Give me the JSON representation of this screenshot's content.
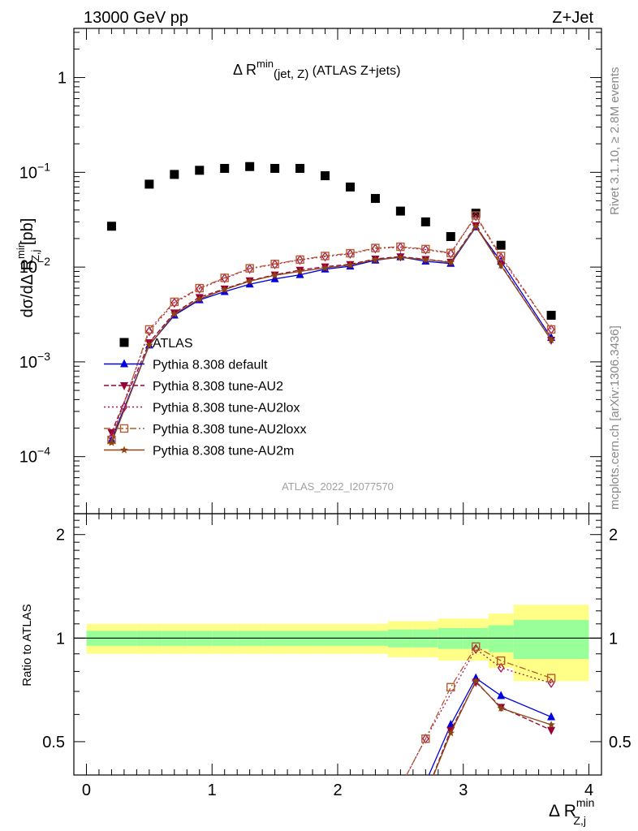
{
  "header": {
    "energy_label": "13000 GeV pp",
    "process_label": "Z+Jet"
  },
  "plot_title": {
    "prefix": "Δ R",
    "sup": "min",
    "sub": "(jet, Z)",
    "suffix": " (ATLAS Z+jets)"
  },
  "side_labels": {
    "rivet": "Rivet 3.1.10, ≥ 2.8M events",
    "mcplots": "mcplots.cern.ch [arXiv:1306.3436]"
  },
  "watermark": "ATLAS_2022_I2077570",
  "axes": {
    "y_main_label": "dσ/dΔ R",
    "y_main_label_sup": "min",
    "y_main_label_sub": "Z,j",
    "y_main_label_unit": " [pb]",
    "y_ratio_label": "Ratio to ATLAS",
    "x_label": "Δ R",
    "x_label_sup": "min",
    "x_label_sub": "Z,j",
    "x_ticks": [
      "0",
      "1",
      "2",
      "3",
      "4"
    ],
    "y_main_ticks": [
      {
        "base": "1",
        "exp": ""
      },
      {
        "base": "10",
        "exp": "−1"
      },
      {
        "base": "10",
        "exp": "−2"
      },
      {
        "base": "10",
        "exp": "−3"
      },
      {
        "base": "10",
        "exp": "−4"
      }
    ],
    "y_ratio_ticks": [
      "2",
      "1",
      "0.5"
    ]
  },
  "colors": {
    "atlas": "#000000",
    "default": "#0000dd",
    "au2": "#990033",
    "au2lox": "#aa1155",
    "au2loxx": "#b35a2e",
    "au2m": "#8b4513",
    "band_inner": "#99ff99",
    "band_outer": "#ffff88"
  },
  "chart_data": {
    "type": "scatter",
    "x_range": [
      -0.1,
      4.1
    ],
    "main_y_log": true,
    "main_y_range": [
      2.5e-05,
      3.3
    ],
    "ratio_y_log": true,
    "ratio_y_range": [
      0.4,
      2.3
    ],
    "x": [
      0.2,
      0.5,
      0.7,
      0.9,
      1.1,
      1.3,
      1.5,
      1.7,
      1.9,
      2.1,
      2.3,
      2.5,
      2.7,
      2.9,
      3.1,
      3.3,
      3.7
    ],
    "series": [
      {
        "name": "ATLAS",
        "key": "atlas",
        "marker": "square",
        "values": [
          0.027,
          0.075,
          0.095,
          0.105,
          0.11,
          0.115,
          0.11,
          0.11,
          0.092,
          0.07,
          0.053,
          0.039,
          0.03,
          0.021,
          0.037,
          0.017,
          0.0031
        ]
      },
      {
        "name": "Pythia 8.308 default",
        "key": "default",
        "marker": "triangle-up",
        "dash": "",
        "values": [
          0.00015,
          0.0015,
          0.0031,
          0.0045,
          0.0055,
          0.0066,
          0.0075,
          0.0083,
          0.0095,
          0.0102,
          0.0118,
          0.0128,
          0.0115,
          0.0109,
          0.0265,
          0.0115,
          0.0018
        ]
      },
      {
        "name": "Pythia 8.308 tune-AU2",
        "key": "au2",
        "marker": "triangle-down",
        "dash": "6,3",
        "values": [
          0.00018,
          0.0016,
          0.0033,
          0.0048,
          0.0059,
          0.0072,
          0.0083,
          0.0093,
          0.0101,
          0.0107,
          0.0122,
          0.0129,
          0.0121,
          0.0113,
          0.0275,
          0.0106,
          0.0017
        ]
      },
      {
        "name": "Pythia 8.308 tune-AU2lox",
        "key": "au2lox",
        "marker": "diamond",
        "dash": "2,3",
        "values": [
          0.00016,
          0.0021,
          0.0042,
          0.0059,
          0.0076,
          0.0096,
          0.0107,
          0.0119,
          0.0129,
          0.0138,
          0.0157,
          0.0162,
          0.0153,
          0.0139,
          0.0345,
          0.0126,
          0.0022
        ]
      },
      {
        "name": "Pythia 8.308 tune-AU2loxx",
        "key": "au2loxx",
        "marker": "square-open",
        "dash": "8,3,2,3",
        "values": [
          0.00015,
          0.0022,
          0.0043,
          0.006,
          0.0077,
          0.0097,
          0.0108,
          0.012,
          0.0131,
          0.014,
          0.0159,
          0.0164,
          0.0155,
          0.0141,
          0.035,
          0.0131,
          0.0022
        ]
      },
      {
        "name": "Pythia 8.308 tune-AU2m",
        "key": "au2m",
        "marker": "star",
        "dash": "",
        "values": [
          0.00014,
          0.0015,
          0.0032,
          0.0046,
          0.0058,
          0.0071,
          0.0082,
          0.009,
          0.0098,
          0.0105,
          0.012,
          0.0126,
          0.012,
          0.0112,
          0.0268,
          0.0104,
          0.0017
        ]
      }
    ],
    "ratio_series": [
      {
        "key": "default",
        "x": [
          2.7,
          2.9,
          3.1,
          3.3,
          3.7
        ],
        "values": [
          0.38,
          0.56,
          0.765,
          0.68,
          0.59
        ]
      },
      {
        "key": "au2",
        "x": [
          2.7,
          2.9,
          3.1,
          3.3,
          3.7
        ],
        "values": [
          0.35,
          0.54,
          0.745,
          0.63,
          0.54
        ]
      },
      {
        "key": "au2lox",
        "x": [
          2.5,
          2.7,
          3.1,
          3.3,
          3.7
        ],
        "values": [
          0.37,
          0.51,
          0.93,
          0.82,
          0.74
        ]
      },
      {
        "key": "au2loxx",
        "x": [
          2.5,
          2.7,
          2.9,
          3.1,
          3.3,
          3.7
        ],
        "values": [
          0.37,
          0.51,
          0.72,
          0.945,
          0.86,
          0.765
        ]
      },
      {
        "key": "au2m",
        "x": [
          2.7,
          2.9,
          3.1,
          3.3,
          3.7
        ],
        "values": [
          0.35,
          0.53,
          0.75,
          0.625,
          0.56
        ]
      }
    ],
    "ratio_band": {
      "x_edges": [
        0.0,
        0.4,
        0.6,
        0.8,
        1.0,
        1.2,
        1.4,
        1.6,
        1.8,
        2.0,
        2.2,
        2.4,
        2.6,
        2.8,
        3.0,
        3.2,
        3.4,
        4.0
      ],
      "inner": [
        0.05,
        0.05,
        0.05,
        0.05,
        0.05,
        0.05,
        0.05,
        0.05,
        0.05,
        0.05,
        0.05,
        0.06,
        0.06,
        0.07,
        0.07,
        0.09,
        0.13
      ],
      "outer": [
        0.1,
        0.1,
        0.1,
        0.1,
        0.1,
        0.1,
        0.1,
        0.1,
        0.1,
        0.1,
        0.1,
        0.12,
        0.12,
        0.14,
        0.14,
        0.18,
        0.25
      ]
    }
  }
}
